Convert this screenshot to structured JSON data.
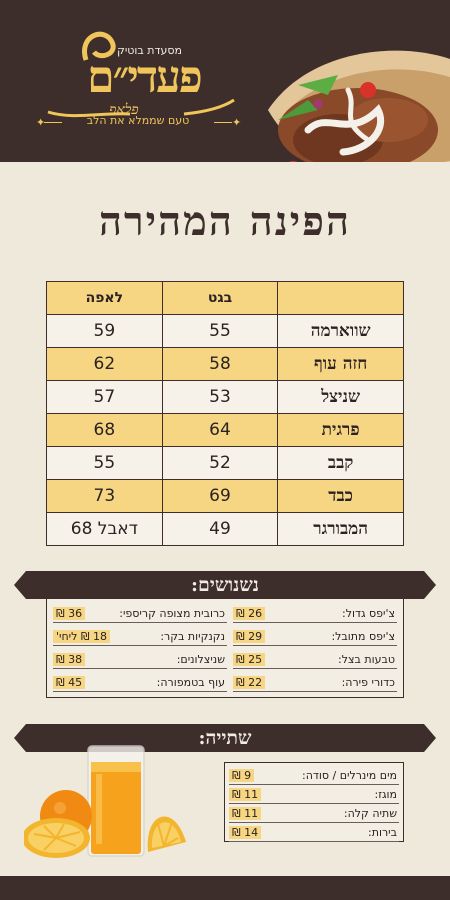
{
  "header": {
    "logo_top": "מסעדת בוטיק",
    "logo_main": "פעדי״ם",
    "logo_sub": "פלאפ",
    "tagline": "טעם שממלא את הלב"
  },
  "title": "הפינה המהירה",
  "menu": {
    "col_pita": "לאפה",
    "col_baguette": "בגט",
    "rows": [
      {
        "name": "שווארמה",
        "baguette": "55",
        "pita": "59"
      },
      {
        "name": "חזה עוף",
        "baguette": "58",
        "pita": "62"
      },
      {
        "name": "שניצל",
        "baguette": "53",
        "pita": "57"
      },
      {
        "name": "פרגית",
        "baguette": "64",
        "pita": "68"
      },
      {
        "name": "קבב",
        "baguette": "52",
        "pita": "55"
      },
      {
        "name": "כבד",
        "baguette": "69",
        "pita": "73"
      },
      {
        "name": "המבורגר",
        "baguette": "49",
        "pita": "דאבל 68"
      }
    ]
  },
  "sides": {
    "title": "נשנושים:",
    "right": [
      {
        "name": "צ'יפס גדול:",
        "price": "26 ₪"
      },
      {
        "name": "צ'יפס מתובל:",
        "price": "29 ₪"
      },
      {
        "name": "טבעות בצל:",
        "price": "25 ₪"
      },
      {
        "name": "כדורי פירה:",
        "price": "22 ₪"
      }
    ],
    "left": [
      {
        "name": "כרובית מצופה קריספי:",
        "price": "36 ₪"
      },
      {
        "name": "נקנקיות בקר:",
        "price": "18 ₪ ליחי'"
      },
      {
        "name": "שניצלונים:",
        "price": "38 ₪"
      },
      {
        "name": "עוף בטמפורה:",
        "price": "45 ₪"
      }
    ]
  },
  "drinks": {
    "title": "שתייה:",
    "items": [
      {
        "name": "מים מינרלים / סודה:",
        "price": "9 ₪"
      },
      {
        "name": "מוגז:",
        "price": "11 ₪"
      },
      {
        "name": "שתיה קלה:",
        "price": "11 ₪"
      },
      {
        "name": "בירות:",
        "price": "14 ₪"
      }
    ]
  },
  "colors": {
    "brown": "#3d2e2b",
    "gold": "#f0c55c",
    "highlight": "#f7d683",
    "cream": "#efe9dc"
  },
  "icons": [
    "shawarma-wrap-image",
    "orange-juice-image"
  ]
}
